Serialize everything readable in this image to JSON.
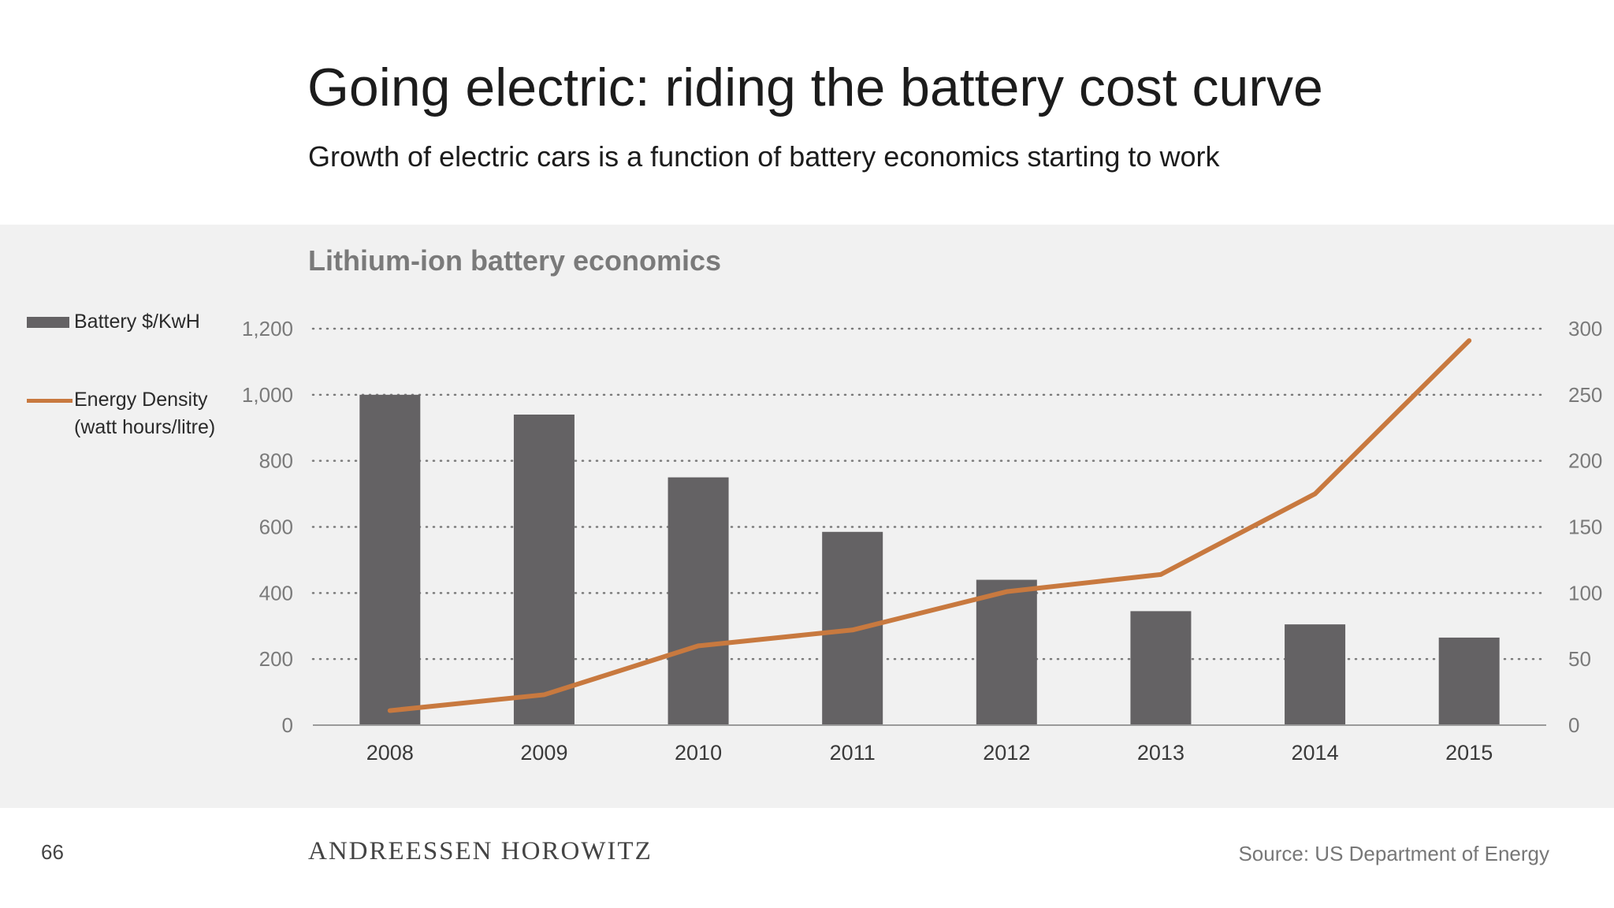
{
  "slide": {
    "title": "Going electric: riding the battery cost curve",
    "subtitle": "Growth of electric cars is a function of battery economics starting to work",
    "page_number": "66",
    "brand": "ANDREESSEN HOROWITZ",
    "source": "Source: US Department of Energy"
  },
  "colors": {
    "bar": "#646264",
    "line": "#c8793f",
    "panel": "#f1f1f1",
    "gridline": "#7a7a7a"
  },
  "chart_data": {
    "type": "bar",
    "title": "Lithium-ion battery economics",
    "categories": [
      "2008",
      "2009",
      "2010",
      "2011",
      "2012",
      "2013",
      "2014",
      "2015"
    ],
    "series": [
      {
        "name": "Battery $/KwH",
        "type": "bar",
        "axis": "left",
        "values": [
          1000,
          940,
          750,
          585,
          440,
          345,
          305,
          265
        ]
      },
      {
        "name": "Energy Density (watt hours/litre)",
        "type": "line",
        "axis": "right",
        "values": [
          11,
          23,
          60,
          72,
          101,
          114,
          175,
          291
        ]
      }
    ],
    "y_left": {
      "min": 0,
      "max": 1200,
      "ticks": [
        0,
        200,
        400,
        600,
        800,
        1000,
        1200
      ],
      "tick_labels": [
        "0",
        "200",
        "400",
        "600",
        "800",
        "1,000",
        "1,200"
      ]
    },
    "y_right": {
      "min": 0,
      "max": 300,
      "ticks": [
        0,
        50,
        100,
        150,
        200,
        250,
        300
      ],
      "tick_labels": [
        "0",
        "50",
        "100",
        "150",
        "200",
        "250",
        "300"
      ]
    },
    "grid": true,
    "legend": "left"
  }
}
